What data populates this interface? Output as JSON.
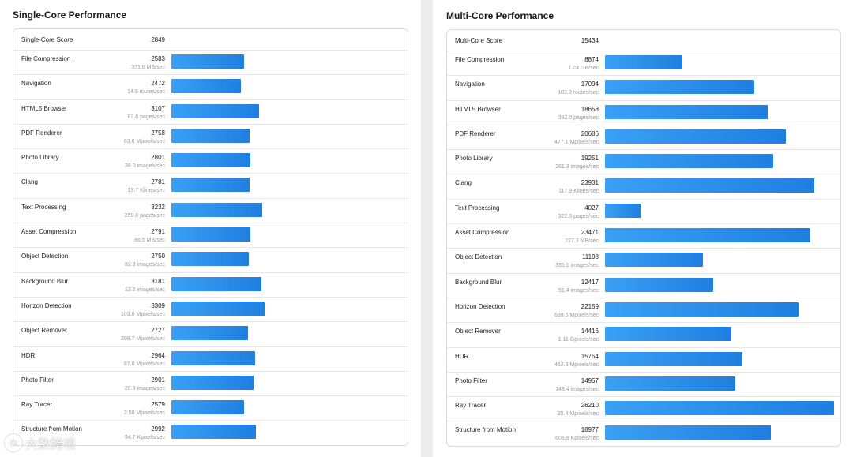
{
  "single": {
    "title": "Single-Core Performance",
    "score_label": "Single-Core Score",
    "score_value": "2849",
    "max": 3500,
    "rows": [
      {
        "label": "File Compression",
        "value": "2583",
        "unit": "371.0 MB/sec",
        "score": 2583
      },
      {
        "label": "Navigation",
        "value": "2472",
        "unit": "14.9 routes/sec",
        "score": 2472
      },
      {
        "label": "HTML5 Browser",
        "value": "3107",
        "unit": "63.6 pages/sec",
        "score": 3107
      },
      {
        "label": "PDF Renderer",
        "value": "2758",
        "unit": "63.6 Mpixels/sec",
        "score": 2758
      },
      {
        "label": "Photo Library",
        "value": "2801",
        "unit": "38.0 images/sec",
        "score": 2801
      },
      {
        "label": "Clang",
        "value": "2781",
        "unit": "13.7 Klines/sec",
        "score": 2781
      },
      {
        "label": "Text Processing",
        "value": "3232",
        "unit": "258.8 pages/sec",
        "score": 3232
      },
      {
        "label": "Asset Compression",
        "value": "2791",
        "unit": "86.5 MB/sec",
        "score": 2791
      },
      {
        "label": "Object Detection",
        "value": "2750",
        "unit": "82.3 images/sec",
        "score": 2750
      },
      {
        "label": "Background Blur",
        "value": "3181",
        "unit": "13.2 images/sec",
        "score": 3181
      },
      {
        "label": "Horizon Detection",
        "value": "3309",
        "unit": "103.0 Mpixels/sec",
        "score": 3309
      },
      {
        "label": "Object Remover",
        "value": "2727",
        "unit": "209.7 Mpixels/sec",
        "score": 2727
      },
      {
        "label": "HDR",
        "value": "2964",
        "unit": "87.0 Mpixels/sec",
        "score": 2964
      },
      {
        "label": "Photo Filter",
        "value": "2901",
        "unit": "28.8 images/sec",
        "score": 2901
      },
      {
        "label": "Ray Tracer",
        "value": "2579",
        "unit": "2.50 Mpixels/sec",
        "score": 2579
      },
      {
        "label": "Structure from Motion",
        "value": "2992",
        "unit": "94.7 Kpixels/sec",
        "score": 2992
      }
    ]
  },
  "multi": {
    "title": "Multi-Core Performance",
    "score_label": "Multi-Core Score",
    "score_value": "15434",
    "max": 26210,
    "rows": [
      {
        "label": "File Compression",
        "value": "8874",
        "unit": "1.24 GB/sec",
        "score": 8874
      },
      {
        "label": "Navigation",
        "value": "17094",
        "unit": "103.0 routes/sec",
        "score": 17094
      },
      {
        "label": "HTML5 Browser",
        "value": "18658",
        "unit": "382.0 pages/sec",
        "score": 18658
      },
      {
        "label": "PDF Renderer",
        "value": "20686",
        "unit": "477.1 Mpixels/sec",
        "score": 20686
      },
      {
        "label": "Photo Library",
        "value": "19251",
        "unit": "261.3 images/sec",
        "score": 19251
      },
      {
        "label": "Clang",
        "value": "23931",
        "unit": "117.9 Klines/sec",
        "score": 23931
      },
      {
        "label": "Text Processing",
        "value": "4027",
        "unit": "322.5 pages/sec",
        "score": 4027
      },
      {
        "label": "Asset Compression",
        "value": "23471",
        "unit": "727.3 MB/sec",
        "score": 23471
      },
      {
        "label": "Object Detection",
        "value": "11198",
        "unit": "335.1 images/sec",
        "score": 11198
      },
      {
        "label": "Background Blur",
        "value": "12417",
        "unit": "51.4 images/sec",
        "score": 12417
      },
      {
        "label": "Horizon Detection",
        "value": "22159",
        "unit": "689.5 Mpixels/sec",
        "score": 22159
      },
      {
        "label": "Object Remover",
        "value": "14416",
        "unit": "1.11 Gpixels/sec",
        "score": 14416
      },
      {
        "label": "HDR",
        "value": "15754",
        "unit": "462.3 Mpixels/sec",
        "score": 15754
      },
      {
        "label": "Photo Filter",
        "value": "14957",
        "unit": "148.4 images/sec",
        "score": 14957
      },
      {
        "label": "Ray Tracer",
        "value": "26210",
        "unit": "25.4 Mpixels/sec",
        "score": 26210
      },
      {
        "label": "Structure from Motion",
        "value": "18977",
        "unit": "608.9 Kpixels/sec",
        "score": 18977
      }
    ]
  },
  "watermark": {
    "text": "大数跨境",
    "icon": "watermark-logo-icon"
  }
}
